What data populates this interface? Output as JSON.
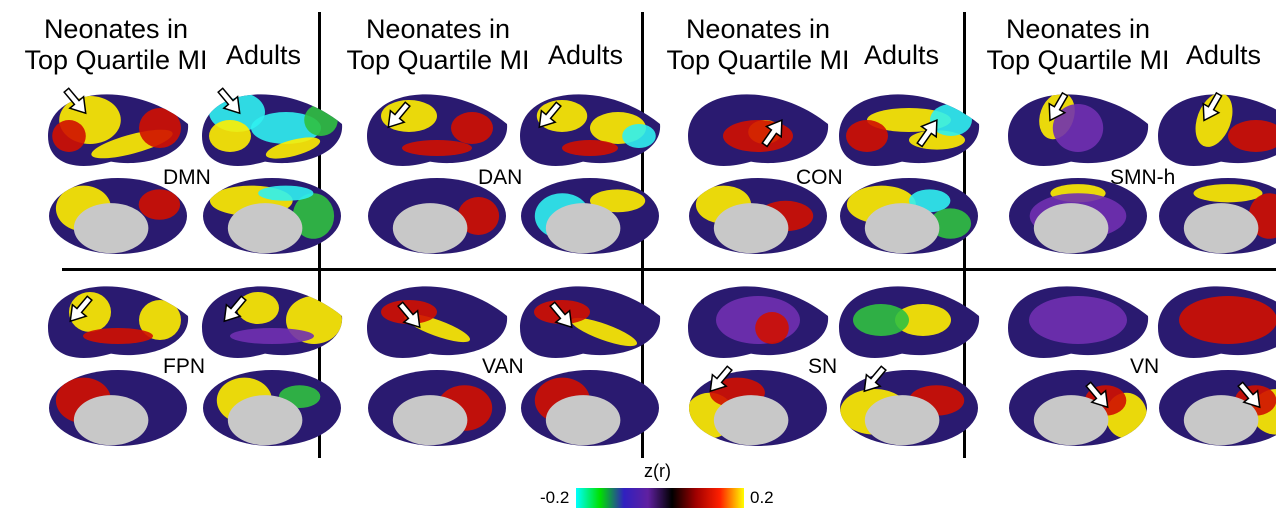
{
  "header": {
    "neonates": "Neonates in\nTop Quartile MI",
    "adults": "Adults"
  },
  "panels": [
    {
      "network": "DMN"
    },
    {
      "network": "DAN"
    },
    {
      "network": "CON"
    },
    {
      "network": "SMN-h"
    },
    {
      "network": "FPN"
    },
    {
      "network": "VAN"
    },
    {
      "network": "SN"
    },
    {
      "network": "VN"
    }
  ],
  "colorbar": {
    "title": "z(r)",
    "min_label": "-0.2",
    "max_label": "0.2",
    "colors": [
      "#00ffff",
      "#00e000",
      "#3020c0",
      "#6020a0",
      "#000000",
      "#a00000",
      "#ff2000",
      "#ffff00"
    ]
  },
  "colors": {
    "divider": "#000000",
    "medial_wall": "#c8c8c8",
    "arrow": "#ffffff"
  }
}
